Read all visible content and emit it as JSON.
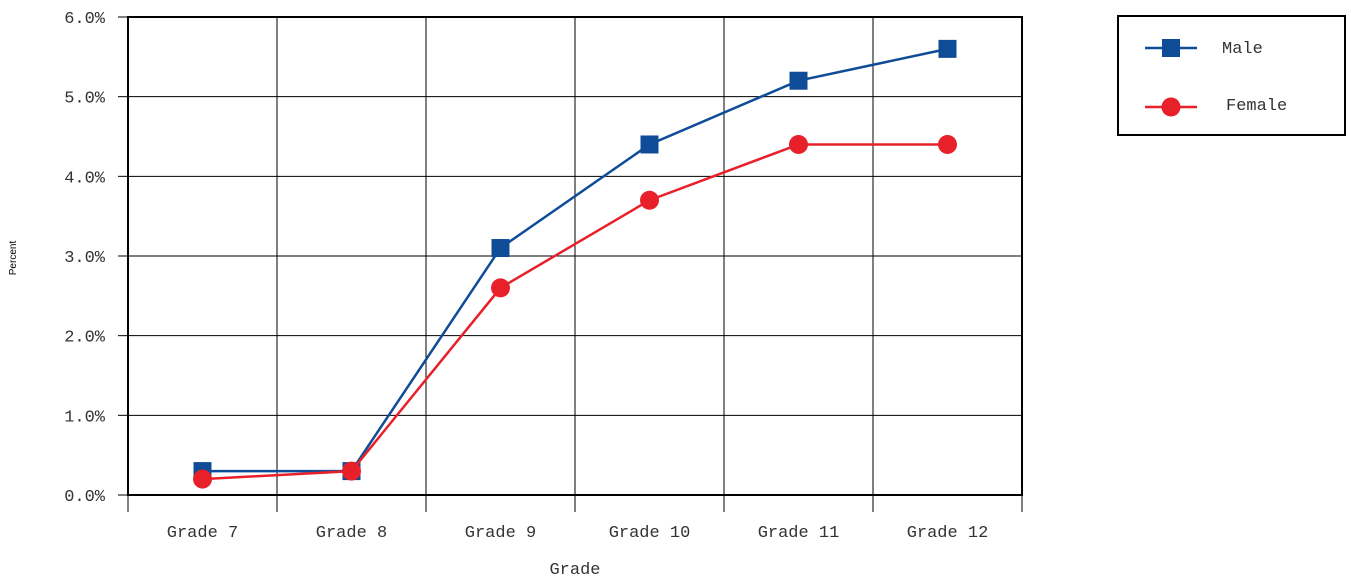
{
  "chart_data": {
    "type": "line",
    "title": "",
    "xlabel": "Grade",
    "ylabel": "Percent",
    "categories": [
      "Grade 7",
      "Grade 8",
      "Grade 9",
      "Grade 10",
      "Grade 11",
      "Grade 12"
    ],
    "yticks": [
      "0.0%",
      "1.0%",
      "2.0%",
      "3.0%",
      "4.0%",
      "5.0%",
      "6.0%"
    ],
    "ylim": [
      0,
      6
    ],
    "grid": true,
    "legend_position": "top-right, outside plot",
    "series": [
      {
        "name": "Male",
        "color": "#0f4c97",
        "marker": "square",
        "values": [
          0.3,
          0.3,
          3.1,
          4.4,
          5.2,
          5.6
        ]
      },
      {
        "name": "Female",
        "color": "#e8202a",
        "marker": "circle",
        "values": [
          0.2,
          0.3,
          2.6,
          3.7,
          4.4,
          4.4
        ]
      }
    ]
  }
}
